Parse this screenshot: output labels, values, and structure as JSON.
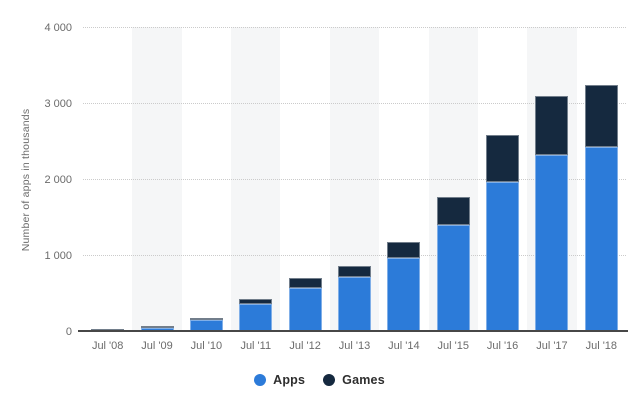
{
  "chart_data": {
    "type": "bar",
    "stacked": true,
    "title": "",
    "categories": [
      "Jul '08",
      "Jul '09",
      "Jul '10",
      "Jul '11",
      "Jul '12",
      "Jul '13",
      "Jul '14",
      "Jul '15",
      "Jul '16",
      "Jul '17",
      "Jul '18"
    ],
    "series": [
      {
        "name": "Apps",
        "color": "#2c7bd9",
        "values": [
          5,
          45,
          148,
          360,
          570,
          705,
          955,
          1390,
          1955,
          2315,
          2420
        ]
      },
      {
        "name": "Games",
        "color": "#15293f",
        "values": [
          1,
          8,
          27,
          65,
          130,
          145,
          210,
          370,
          625,
          775,
          820
        ]
      }
    ],
    "totals": [
      6,
      53,
      175,
      425,
      700,
      850,
      1165,
      1760,
      2580,
      3090,
      3240
    ],
    "xlabel": "",
    "ylabel": "Number of apps in thousands",
    "ylim": [
      0,
      4000
    ],
    "yticks": [
      0,
      1000,
      2000,
      3000,
      4000
    ],
    "ytick_labels": [
      "0",
      "1 000",
      "2 000",
      "3 000",
      "4 000"
    ],
    "grid": "horizontal-dotted",
    "plot_background": "alternating vertical stripes on odd categories",
    "stripe_color": "#f5f6f7",
    "axis_line_color": "#474747",
    "tick_text_color": "#6b6b6b",
    "legend_position": "bottom-center"
  },
  "legend": {
    "items": [
      {
        "label": "Apps",
        "color": "#2c7bd9"
      },
      {
        "label": "Games",
        "color": "#15293f"
      }
    ]
  }
}
